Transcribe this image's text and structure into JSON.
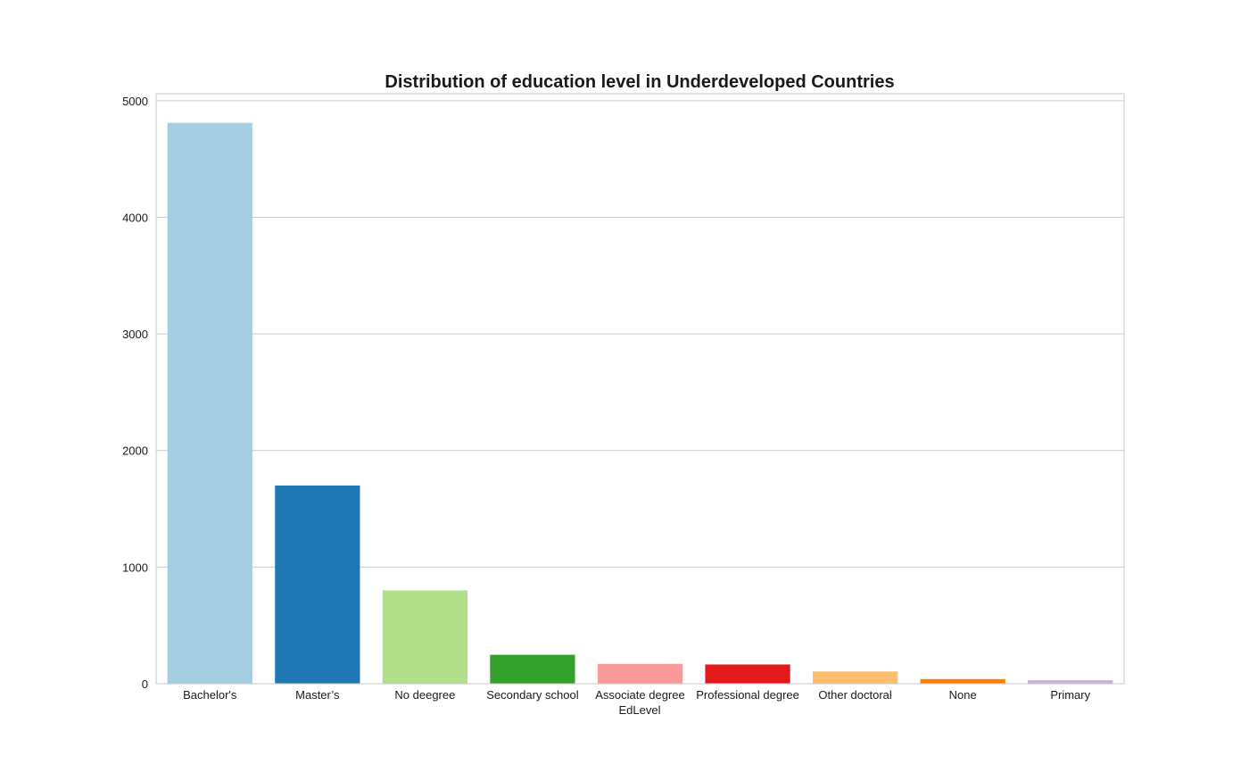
{
  "chart_data": {
    "type": "bar",
    "title": "Distribution of education level in Underdeveloped Countries",
    "xlabel": "EdLevel",
    "ylabel": "",
    "categories": [
      "Bachelor's",
      "Master’s",
      "No deegree",
      "Secondary school",
      "Associate degree",
      "Professional degree",
      "Other doctoral",
      "None",
      "Primary"
    ],
    "values": [
      4810,
      1700,
      800,
      248,
      170,
      165,
      105,
      40,
      30
    ],
    "colors": [
      "#a6cee3",
      "#1f78b4",
      "#b2df8a",
      "#33a02c",
      "#fb9a99",
      "#e31a1c",
      "#fdbf6f",
      "#ff7f00",
      "#cab2d6"
    ],
    "yticks": [
      0,
      1000,
      2000,
      3000,
      4000,
      5000
    ],
    "ylim": [
      0,
      5060
    ],
    "grid": "horizontal"
  }
}
